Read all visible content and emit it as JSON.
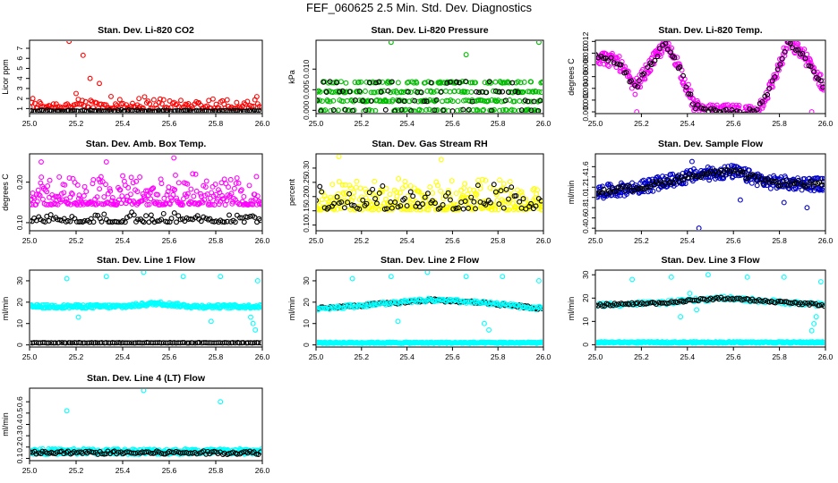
{
  "title": "FEF_060625  2.5 Min. Std. Dev. Diagnostics",
  "chart_data": [
    {
      "type": "scatter",
      "title": "Stan. Dev. Li-820 CO2",
      "ylabel": "Licor ppm",
      "xlim": [
        25.0,
        26.0
      ],
      "ylim": [
        0.5,
        7.8
      ],
      "xticks": [
        25.0,
        25.2,
        25.4,
        25.6,
        25.8,
        26.0
      ],
      "xtick_labels": [
        "25.0",
        "25.2",
        "25.4",
        "25.6",
        "25.8",
        "26.0"
      ],
      "yticks": [
        1,
        2,
        3,
        4,
        5,
        6,
        7
      ],
      "ytick_labels": [
        "1",
        "2",
        "3",
        "4",
        "5",
        "6",
        "7"
      ],
      "series": [
        {
          "color": "#ff0000",
          "gen": "scatter",
          "n": 150,
          "base": 1.2,
          "spread": 0.9,
          "spikes": [
            [
              25.17,
              7.7
            ],
            [
              25.23,
              6.3
            ],
            [
              25.26,
              4.0
            ],
            [
              25.3,
              3.5
            ],
            [
              25.2,
              2.5
            ],
            [
              25.35,
              2.2
            ],
            [
              25.47,
              2.0
            ]
          ]
        },
        {
          "color": "#000000",
          "gen": "scatter",
          "n": 120,
          "base": 0.75,
          "spread": 0.1,
          "spikes": []
        }
      ]
    },
    {
      "type": "scatter",
      "title": "Stan. Dev. Li-820 Pressure",
      "ylabel": "kPa",
      "xlim": [
        25.0,
        26.0
      ],
      "ylim": [
        -0.0008,
        0.017
      ],
      "xticks": [
        25.0,
        25.2,
        25.4,
        25.6,
        25.8,
        26.0
      ],
      "xtick_labels": [
        "25.0",
        "25.2",
        "25.4",
        "25.6",
        "25.8",
        "26.0"
      ],
      "yticks": [
        0.0,
        0.005,
        0.01
      ],
      "ytick_labels": [
        "0.000",
        "0.005",
        "0.010"
      ],
      "series": [
        {
          "color": "#00bb00",
          "gen": "bands",
          "n": 330,
          "bands": [
            0.0,
            0.0023,
            0.0045,
            0.0068
          ],
          "spikes": [
            [
              25.33,
              0.0165
            ],
            [
              25.66,
              0.0135
            ],
            [
              25.98,
              0.0165
            ]
          ]
        },
        {
          "color": "#000000",
          "gen": "bands",
          "n": 70,
          "bands": [
            0.0,
            0.0023,
            0.0045,
            0.0068
          ],
          "spikes": []
        }
      ]
    },
    {
      "type": "scatter",
      "title": "Stan. Dev. Li-820 Temp.",
      "ylabel": "degrees C",
      "xlim": [
        25.0,
        26.0
      ],
      "ylim": [
        -0.0003,
        0.0122
      ],
      "xticks": [
        25.0,
        25.2,
        25.4,
        25.6,
        25.8,
        26.0
      ],
      "xtick_labels": [
        "25.0",
        "25.2",
        "25.4",
        "25.6",
        "25.8",
        "26.0"
      ],
      "yticks": [
        0.0,
        0.002,
        0.004,
        0.006,
        0.008,
        0.01,
        0.012
      ],
      "ytick_labels": [
        "0.000",
        "0.002",
        "0.004",
        "0.006",
        "0.008",
        "0.010",
        "0.012"
      ],
      "series": [
        {
          "color": "#ff00ff",
          "gen": "curve",
          "n": 330,
          "curve": [
            [
              25.0,
              0.0095
            ],
            [
              25.1,
              0.0085
            ],
            [
              25.17,
              0.004
            ],
            [
              25.3,
              0.0115
            ],
            [
              25.35,
              0.009
            ],
            [
              25.43,
              0.001
            ],
            [
              25.48,
              0.0
            ],
            [
              25.7,
              0.0
            ],
            [
              25.76,
              0.004
            ],
            [
              25.84,
              0.0118
            ],
            [
              25.9,
              0.01
            ],
            [
              26.0,
              0.004
            ]
          ],
          "spread": 0.0012,
          "spikes": [
            [
              25.18,
              0.0
            ],
            [
              25.94,
              0.0
            ]
          ]
        },
        {
          "color": "#000000",
          "gen": "curve",
          "n": 90,
          "curve": [
            [
              25.0,
              0.0095
            ],
            [
              25.1,
              0.0085
            ],
            [
              25.17,
              0.004
            ],
            [
              25.3,
              0.0115
            ],
            [
              25.35,
              0.009
            ],
            [
              25.43,
              0.001
            ],
            [
              25.48,
              0.0
            ],
            [
              25.7,
              0.0
            ],
            [
              25.76,
              0.004
            ],
            [
              25.84,
              0.0118
            ],
            [
              25.9,
              0.01
            ],
            [
              26.0,
              0.004
            ]
          ],
          "spread": 0.0005,
          "spikes": []
        }
      ]
    },
    {
      "type": "scatter",
      "title": "Stan. Dev. Amb. Box Temp.",
      "ylabel": "degrees C",
      "xlim": [
        25.0,
        26.0
      ],
      "ylim": [
        0.08,
        0.27
      ],
      "xticks": [
        25.0,
        25.2,
        25.4,
        25.6,
        25.8,
        26.0
      ],
      "xtick_labels": [
        "25.0",
        "25.2",
        "25.4",
        "25.6",
        "25.8",
        "26.0"
      ],
      "yticks": [
        0.1,
        0.2
      ],
      "ytick_labels": [
        "0.10",
        "0.20"
      ],
      "series": [
        {
          "color": "#ff00ff",
          "gen": "scatter",
          "n": 300,
          "base": 0.155,
          "spread": 0.055,
          "spikes": [
            [
              25.05,
              0.25
            ],
            [
              25.33,
              0.25
            ],
            [
              25.62,
              0.26
            ]
          ]
        },
        {
          "color": "#000000",
          "gen": "scatter",
          "n": 110,
          "base": 0.105,
          "spread": 0.018,
          "spikes": []
        }
      ]
    },
    {
      "type": "scatter",
      "title": "Stan. Dev. Gas Stream RH",
      "ylabel": "percent",
      "xlim": [
        25.0,
        26.0
      ],
      "ylim": [
        0.08,
        0.35
      ],
      "xticks": [
        25.0,
        25.2,
        25.4,
        25.6,
        25.8,
        26.0
      ],
      "xtick_labels": [
        "25.0",
        "25.2",
        "25.4",
        "25.6",
        "25.8",
        "26.0"
      ],
      "yticks": [
        0.1,
        0.15,
        0.2,
        0.25,
        0.3
      ],
      "ytick_labels": [
        "0.10",
        "0.15",
        "0.20",
        "0.25",
        "0.30"
      ],
      "series": [
        {
          "color": "#ffff00",
          "gen": "scatter",
          "n": 320,
          "base": 0.17,
          "spread": 0.08,
          "spikes": [
            [
              25.1,
              0.34
            ],
            [
              25.55,
              0.33
            ]
          ]
        },
        {
          "color": "#000000",
          "gen": "scatter",
          "n": 90,
          "base": 0.17,
          "spread": 0.07,
          "spikes": []
        }
      ]
    },
    {
      "type": "scatter",
      "title": "Stan. Dev. Sample Flow",
      "ylabel": "ml/min",
      "xlim": [
        25.0,
        26.0
      ],
      "ylim": [
        0.35,
        1.85
      ],
      "xticks": [
        25.0,
        25.2,
        25.4,
        25.6,
        25.8,
        26.0
      ],
      "xtick_labels": [
        "25.0",
        "25.2",
        "25.4",
        "25.6",
        "25.8",
        "26.0"
      ],
      "yticks": [
        0.4,
        0.6,
        0.8,
        1.0,
        1.2,
        1.4,
        1.6
      ],
      "ytick_labels": [
        "0.4",
        "0.6",
        "0.8",
        "1.0",
        "1.2",
        "1.4",
        "1.6"
      ],
      "series": [
        {
          "color": "#0000cc",
          "gen": "curve",
          "n": 340,
          "curve": [
            [
              25.0,
              1.1
            ],
            [
              25.2,
              1.2
            ],
            [
              25.45,
              1.45
            ],
            [
              25.6,
              1.5
            ],
            [
              25.75,
              1.3
            ],
            [
              26.0,
              1.25
            ]
          ],
          "spread": 0.13,
          "spikes": [
            [
              25.45,
              0.4
            ],
            [
              25.42,
              1.7
            ],
            [
              25.92,
              0.8
            ],
            [
              25.63,
              0.95
            ],
            [
              25.82,
              0.9
            ]
          ]
        },
        {
          "color": "#000000",
          "gen": "curve",
          "n": 110,
          "curve": [
            [
              25.0,
              1.1
            ],
            [
              25.2,
              1.2
            ],
            [
              25.45,
              1.45
            ],
            [
              25.6,
              1.5
            ],
            [
              25.75,
              1.3
            ],
            [
              26.0,
              1.25
            ]
          ],
          "spread": 0.06,
          "spikes": []
        }
      ]
    },
    {
      "type": "scatter",
      "title": "Stan. Dev. Line 1 Flow",
      "ylabel": "ml/min",
      "xlim": [
        25.0,
        26.0
      ],
      "ylim": [
        -1,
        35
      ],
      "xticks": [
        25.0,
        25.2,
        25.4,
        25.6,
        25.8,
        26.0
      ],
      "xtick_labels": [
        "25.0",
        "25.2",
        "25.4",
        "25.6",
        "25.8",
        "26.0"
      ],
      "yticks": [
        0,
        10,
        20,
        30
      ],
      "ytick_labels": [
        "0",
        "10",
        "20",
        "30"
      ],
      "series": [
        {
          "color": "#00ffff",
          "gen": "curve",
          "n": 300,
          "curve": [
            [
              25.0,
              18
            ],
            [
              25.4,
              18
            ],
            [
              25.55,
              19.5
            ],
            [
              25.7,
              18
            ],
            [
              26.0,
              18
            ]
          ],
          "spread": 0.8,
          "spikes": [
            [
              25.16,
              31
            ],
            [
              25.33,
              32
            ],
            [
              25.49,
              34
            ],
            [
              25.66,
              32
            ],
            [
              25.82,
              32
            ],
            [
              25.98,
              30
            ],
            [
              25.21,
              13
            ],
            [
              25.78,
              11
            ],
            [
              25.96,
              10
            ],
            [
              25.97,
              7
            ],
            [
              25.95,
              13
            ]
          ]
        },
        {
          "color": "#000000",
          "gen": "curve",
          "n": 110,
          "curve": [
            [
              25.0,
              1
            ],
            [
              26.0,
              1
            ]
          ],
          "spread": 0.1,
          "spikes": []
        }
      ]
    },
    {
      "type": "scatter",
      "title": "Stan. Dev. Line 2 Flow",
      "ylabel": "ml/min",
      "xlim": [
        25.0,
        26.0
      ],
      "ylim": [
        -1,
        35
      ],
      "xticks": [
        25.0,
        25.2,
        25.4,
        25.6,
        25.8,
        26.0
      ],
      "xtick_labels": [
        "25.0",
        "25.2",
        "25.4",
        "25.6",
        "25.8",
        "26.0"
      ],
      "yticks": [
        0,
        10,
        20,
        30
      ],
      "ytick_labels": [
        "0",
        "10",
        "20",
        "30"
      ],
      "series": [
        {
          "color": "#00ffff",
          "gen": "curve",
          "n": 280,
          "curve": [
            [
              25.0,
              1
            ],
            [
              26.0,
              1
            ]
          ],
          "spread": 0.3,
          "spikes": [
            [
              25.16,
              31
            ],
            [
              25.33,
              32
            ],
            [
              25.49,
              34
            ],
            [
              25.66,
              32
            ],
            [
              25.82,
              32
            ],
            [
              25.98,
              30
            ],
            [
              25.36,
              11
            ],
            [
              25.74,
              10
            ],
            [
              25.76,
              7
            ]
          ]
        },
        {
          "color": "#000000",
          "gen": "curve",
          "n": 110,
          "curve": [
            [
              25.0,
              17
            ],
            [
              25.2,
              18.5
            ],
            [
              25.5,
              21
            ],
            [
              25.7,
              20
            ],
            [
              26.0,
              17
            ]
          ],
          "spread": 0.6,
          "spikes": []
        },
        {
          "color": "#00ffff",
          "gen": "curve",
          "n": 150,
          "curve": [
            [
              25.0,
              17
            ],
            [
              25.2,
              18.5
            ],
            [
              25.5,
              21
            ],
            [
              25.7,
              20
            ],
            [
              26.0,
              17
            ]
          ],
          "spread": 0.8,
          "spikes": []
        }
      ]
    },
    {
      "type": "scatter",
      "title": "Stan. Dev. Line 3 Flow",
      "ylabel": "ml/min",
      "xlim": [
        25.0,
        26.0
      ],
      "ylim": [
        -1,
        32
      ],
      "xticks": [
        25.0,
        25.2,
        25.4,
        25.6,
        25.8,
        26.0
      ],
      "xtick_labels": [
        "25.0",
        "25.2",
        "25.4",
        "25.6",
        "25.8",
        "26.0"
      ],
      "yticks": [
        0,
        10,
        20,
        30
      ],
      "ytick_labels": [
        "0",
        "10",
        "20",
        "30"
      ],
      "series": [
        {
          "color": "#00ffff",
          "gen": "curve",
          "n": 280,
          "curve": [
            [
              25.0,
              1
            ],
            [
              26.0,
              1
            ]
          ],
          "spread": 0.3,
          "spikes": [
            [
              25.16,
              28
            ],
            [
              25.33,
              29
            ],
            [
              25.49,
              30
            ],
            [
              25.66,
              29
            ],
            [
              25.82,
              29
            ],
            [
              25.98,
              27
            ],
            [
              25.41,
              22
            ],
            [
              25.44,
              15
            ],
            [
              25.37,
              12
            ],
            [
              25.96,
              12
            ],
            [
              25.95,
              9
            ],
            [
              25.94,
              6
            ]
          ]
        },
        {
          "color": "#00ffff",
          "gen": "curve",
          "n": 140,
          "curve": [
            [
              25.0,
              17
            ],
            [
              25.3,
              18
            ],
            [
              25.55,
              20
            ],
            [
              25.7,
              19
            ],
            [
              26.0,
              17
            ]
          ],
          "spread": 0.8,
          "spikes": []
        },
        {
          "color": "#000000",
          "gen": "curve",
          "n": 110,
          "curve": [
            [
              25.0,
              17
            ],
            [
              25.3,
              18
            ],
            [
              25.55,
              20
            ],
            [
              25.7,
              19
            ],
            [
              26.0,
              17
            ]
          ],
          "spread": 0.5,
          "spikes": []
        }
      ]
    },
    {
      "type": "scatter",
      "title": "Stan. Dev. Line 4 (LT) Flow",
      "ylabel": "ml/min",
      "xlim": [
        25.0,
        26.0
      ],
      "ylim": [
        0.08,
        0.72
      ],
      "xticks": [
        25.0,
        25.2,
        25.4,
        25.6,
        25.8,
        26.0
      ],
      "xtick_labels": [
        "25.0",
        "25.2",
        "25.4",
        "25.6",
        "25.8",
        "26.0"
      ],
      "yticks": [
        0.1,
        0.2,
        0.3,
        0.4,
        0.5,
        0.6
      ],
      "ytick_labels": [
        "0.1",
        "0.2",
        "0.3",
        "0.4",
        "0.5",
        "0.6"
      ],
      "series": [
        {
          "color": "#00ffff",
          "gen": "curve",
          "n": 320,
          "curve": [
            [
              25.0,
              0.16
            ],
            [
              26.0,
              0.16
            ]
          ],
          "spread": 0.025,
          "spikes": [
            [
              25.16,
              0.52
            ],
            [
              25.49,
              0.7
            ],
            [
              25.82,
              0.6
            ]
          ]
        },
        {
          "color": "#000000",
          "gen": "curve",
          "n": 110,
          "curve": [
            [
              25.0,
              0.15
            ],
            [
              26.0,
              0.15
            ]
          ],
          "spread": 0.015,
          "spikes": []
        }
      ]
    }
  ]
}
